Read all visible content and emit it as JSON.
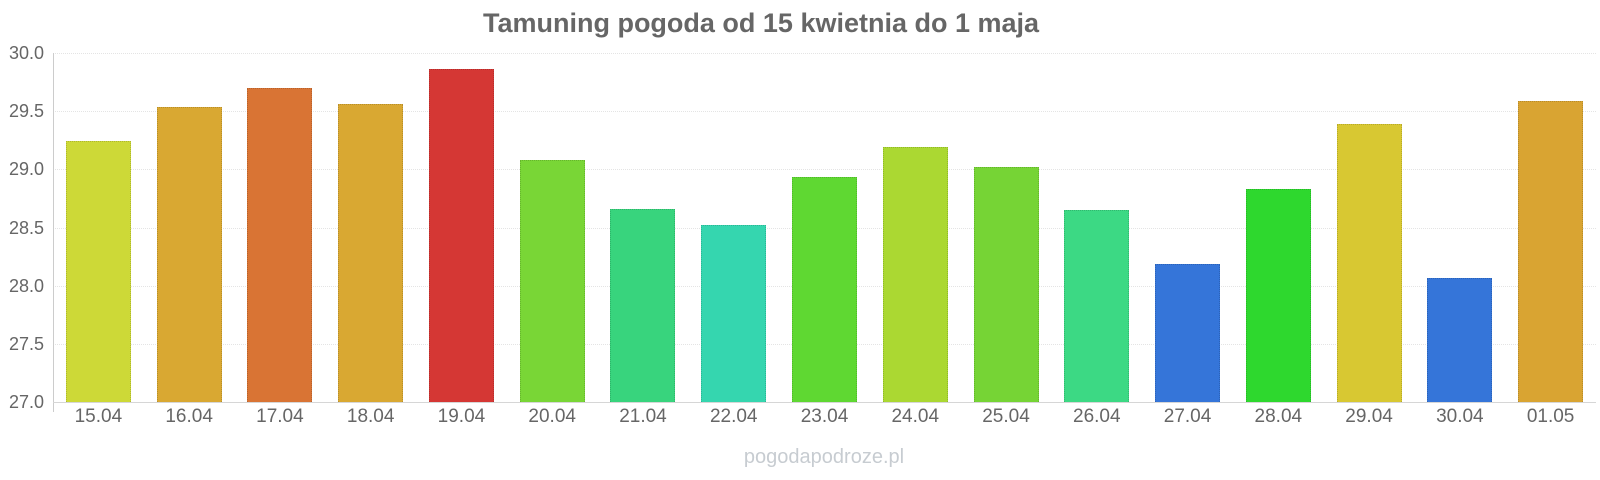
{
  "header": {
    "title": "Tamuning pogoda od 15 kwietnia do 1 maja"
  },
  "watermark": {
    "text": "pogodapodroze.pl"
  },
  "chart_data": {
    "type": "bar",
    "title": "Tamuning pogoda od 15 kwietnia do 1 maja",
    "xlabel": "",
    "ylabel": "",
    "categories": [
      "15.04",
      "16.04",
      "17.04",
      "18.04",
      "19.04",
      "20.04",
      "21.04",
      "22.04",
      "23.04",
      "24.04",
      "25.04",
      "26.04",
      "27.04",
      "28.04",
      "29.04",
      "30.04",
      "01.05"
    ],
    "values": [
      29.24,
      29.54,
      29.7,
      29.56,
      29.86,
      29.08,
      28.66,
      28.52,
      28.93,
      29.19,
      29.02,
      28.65,
      28.19,
      28.83,
      29.39,
      28.07,
      29.59
    ],
    "bar_colors": [
      "#cdd937",
      "#d9a832",
      "#d97434",
      "#d9a832",
      "#d53734",
      "#79d636",
      "#38d47d",
      "#35d6af",
      "#5fd832",
      "#abd832",
      "#76d435",
      "#3cd984",
      "#3575d9",
      "#2ed82e",
      "#d8c832",
      "#3575d9",
      "#d9a432"
    ],
    "ylim": [
      27.0,
      30.0
    ],
    "yticks": [
      27.0,
      27.5,
      28.0,
      28.5,
      29.0,
      29.5,
      30.0
    ],
    "ytick_labels": [
      "27.0",
      "27.5",
      "28.0",
      "28.5",
      "29.0",
      "29.5",
      "30.0"
    ],
    "grid": "horizontal-dotted",
    "legend": "none"
  },
  "theme": {
    "title_color": "#666666",
    "axis_label_color": "#666666",
    "axis_line_color": "#cccccc",
    "grid_color": "#e4e4e4",
    "watermark_color": "#c7ccd1",
    "background": "#ffffff"
  }
}
